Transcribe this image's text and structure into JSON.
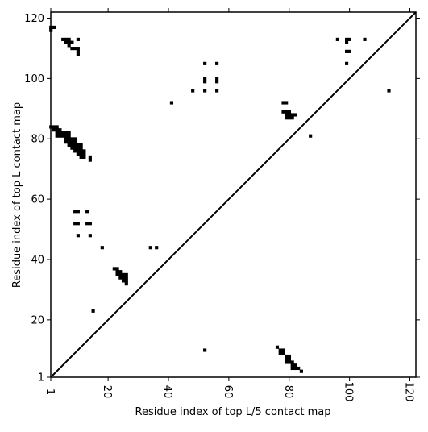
{
  "chart_data": {
    "type": "heatmap",
    "title": "",
    "xlabel": "Residue index of top L/5 contact map",
    "ylabel": "Residue index of top L contact map",
    "xlim": [
      1,
      122
    ],
    "ylim": [
      1,
      122
    ],
    "x_ticks": [
      "1",
      "20",
      "40",
      "60",
      "80",
      "100",
      "120"
    ],
    "y_ticks": [
      "1",
      "20",
      "40",
      "60",
      "80",
      "100",
      "120"
    ],
    "diagonal": true,
    "grid": false,
    "cell_color": "#000000",
    "upper_triangle_cells": [
      [
        1,
        116
      ],
      [
        1,
        117
      ],
      [
        2,
        117
      ],
      [
        5,
        113
      ],
      [
        6,
        113
      ],
      [
        6,
        112
      ],
      [
        7,
        113
      ],
      [
        7,
        112
      ],
      [
        7,
        111
      ],
      [
        8,
        112
      ],
      [
        8,
        110
      ],
      [
        9,
        110
      ],
      [
        10,
        110
      ],
      [
        10,
        109
      ],
      [
        10,
        108
      ],
      [
        10,
        113
      ],
      [
        1,
        84
      ],
      [
        2,
        84
      ],
      [
        2,
        83
      ],
      [
        3,
        84
      ],
      [
        3,
        83
      ],
      [
        3,
        82
      ],
      [
        3,
        81
      ],
      [
        4,
        83
      ],
      [
        4,
        82
      ],
      [
        4,
        81
      ],
      [
        5,
        82
      ],
      [
        5,
        81
      ],
      [
        6,
        82
      ],
      [
        6,
        81
      ],
      [
        6,
        80
      ],
      [
        6,
        79
      ],
      [
        7,
        82
      ],
      [
        7,
        81
      ],
      [
        7,
        80
      ],
      [
        7,
        79
      ],
      [
        7,
        78
      ],
      [
        8,
        80
      ],
      [
        8,
        79
      ],
      [
        8,
        78
      ],
      [
        8,
        77
      ],
      [
        9,
        80
      ],
      [
        9,
        79
      ],
      [
        9,
        78
      ],
      [
        9,
        77
      ],
      [
        9,
        76
      ],
      [
        10,
        78
      ],
      [
        10,
        77
      ],
      [
        10,
        76
      ],
      [
        10,
        75
      ],
      [
        11,
        78
      ],
      [
        11,
        77
      ],
      [
        11,
        76
      ],
      [
        11,
        75
      ],
      [
        11,
        74
      ],
      [
        12,
        76
      ],
      [
        12,
        75
      ],
      [
        12,
        74
      ],
      [
        14,
        74
      ],
      [
        14,
        73
      ],
      [
        9,
        56
      ],
      [
        10,
        56
      ],
      [
        13,
        56
      ],
      [
        9,
        52
      ],
      [
        10,
        52
      ],
      [
        13,
        52
      ],
      [
        14,
        52
      ],
      [
        10,
        48
      ],
      [
        14,
        48
      ],
      [
        18,
        44
      ],
      [
        34,
        44
      ],
      [
        36,
        44
      ],
      [
        22,
        37
      ],
      [
        23,
        37
      ],
      [
        23,
        36
      ],
      [
        24,
        36
      ],
      [
        23,
        35
      ],
      [
        24,
        35
      ],
      [
        25,
        35
      ],
      [
        26,
        35
      ],
      [
        24,
        34
      ],
      [
        25,
        34
      ],
      [
        26,
        34
      ],
      [
        25,
        33
      ],
      [
        26,
        33
      ],
      [
        26,
        32
      ],
      [
        15,
        23
      ],
      [
        41,
        92
      ],
      [
        48,
        96
      ],
      [
        52,
        96
      ],
      [
        56,
        96
      ],
      [
        52,
        100
      ],
      [
        52,
        99
      ],
      [
        56,
        100
      ],
      [
        56,
        99
      ],
      [
        52,
        105
      ],
      [
        56,
        105
      ],
      [
        78,
        92
      ],
      [
        79,
        92
      ],
      [
        78,
        89
      ],
      [
        79,
        89
      ],
      [
        80,
        89
      ],
      [
        79,
        88
      ],
      [
        80,
        88
      ],
      [
        81,
        88
      ],
      [
        82,
        88
      ],
      [
        79,
        87
      ],
      [
        80,
        87
      ],
      [
        81,
        87
      ],
      [
        87,
        81
      ],
      [
        96,
        113
      ],
      [
        99,
        113
      ],
      [
        100,
        113
      ],
      [
        99,
        112
      ],
      [
        99,
        109
      ],
      [
        100,
        109
      ],
      [
        99,
        105
      ],
      [
        105,
        113
      ],
      [
        113,
        96
      ]
    ],
    "lower_triangle_cells": [
      [
        52,
        10
      ],
      [
        76,
        11
      ],
      [
        77,
        10
      ],
      [
        78,
        10
      ],
      [
        77,
        9
      ],
      [
        78,
        9
      ],
      [
        79,
        8
      ],
      [
        80,
        8
      ],
      [
        79,
        7
      ],
      [
        80,
        7
      ],
      [
        79,
        6
      ],
      [
        80,
        6
      ],
      [
        81,
        6
      ],
      [
        81,
        5
      ],
      [
        82,
        5
      ],
      [
        81,
        4
      ],
      [
        82,
        4
      ],
      [
        83,
        4
      ],
      [
        84,
        3
      ]
    ]
  }
}
